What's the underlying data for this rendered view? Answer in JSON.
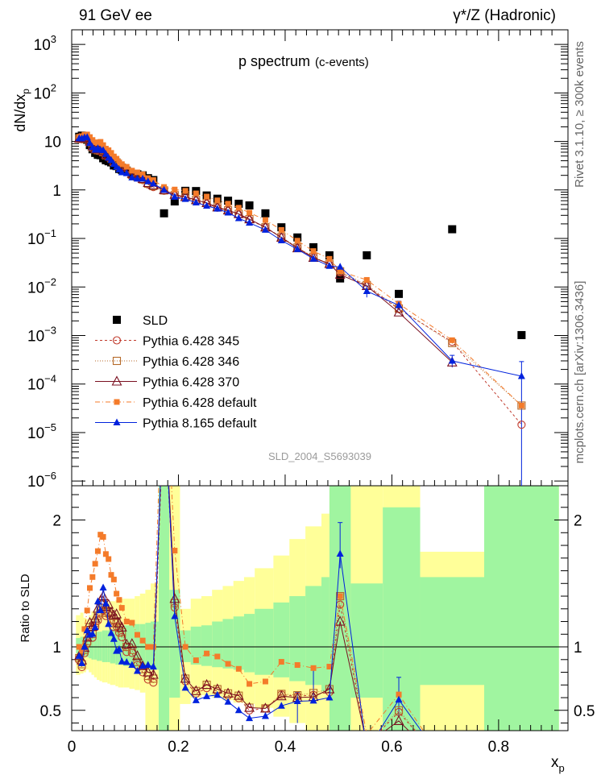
{
  "header": {
    "left": "91 GeV ee",
    "right": "γ*/Z (Hadronic)",
    "plot_title": "p spectrum",
    "plot_subtitle": "(c-events)",
    "side_top": "Rivet 3.1.10, ≥ 300k events",
    "side_bottom": "mcplots.cern.ch [arXiv:1306.3436]",
    "analysis_id": "SLD_2004_S5693039"
  },
  "chart_data": [
    {
      "type": "scatter",
      "name": "main-panel",
      "ylabel": "dN/dx",
      "ylabel_sub": "p",
      "yscale": "log",
      "ylim": [
        8e-07,
        2000
      ],
      "xlim": [
        0,
        0.93
      ],
      "ytick_labels": [
        {
          "v": 1000,
          "base": "10",
          "exp": "3"
        },
        {
          "v": 100,
          "base": "10",
          "exp": "2"
        },
        {
          "v": 10,
          "base": "10",
          "exp": ""
        },
        {
          "v": 1,
          "base": "1",
          "exp": ""
        },
        {
          "v": 0.1,
          "base": "10",
          "exp": "−1"
        },
        {
          "v": 0.01,
          "base": "10",
          "exp": "−2"
        },
        {
          "v": 0.001,
          "base": "10",
          "exp": "−3"
        },
        {
          "v": 0.0001,
          "base": "10",
          "exp": "−4"
        },
        {
          "v": 1e-05,
          "base": "10",
          "exp": "−5"
        },
        {
          "v": 1e-06,
          "base": "10",
          "exp": "−6"
        }
      ],
      "x": [
        0.014,
        0.019,
        0.024,
        0.029,
        0.034,
        0.039,
        0.044,
        0.049,
        0.054,
        0.059,
        0.064,
        0.069,
        0.074,
        0.079,
        0.084,
        0.089,
        0.094,
        0.103,
        0.113,
        0.123,
        0.133,
        0.143,
        0.153,
        0.173,
        0.193,
        0.213,
        0.233,
        0.253,
        0.273,
        0.293,
        0.313,
        0.333,
        0.363,
        0.393,
        0.423,
        0.453,
        0.483,
        0.503,
        0.553,
        0.613,
        0.713,
        0.843
      ],
      "series": [
        {
          "name": "SLD",
          "style": "sld",
          "color": "#000000",
          "values": [
            12.5,
            13.2,
            12.1,
            10.8,
            8.4,
            6.9,
            5.8,
            5.3,
            5.2,
            4.5,
            4.1,
            3.9,
            3.7,
            3.2,
            3.1,
            2.7,
            2.6,
            2.5,
            2.1,
            2.1,
            2.0,
            1.75,
            1.6,
            0.33,
            0.58,
            0.96,
            0.95,
            0.77,
            0.66,
            0.6,
            0.52,
            0.48,
            0.33,
            0.17,
            0.105,
            0.066,
            0.045,
            0.015,
            0.045,
            0.0072,
            0.155,
            0.00102
          ]
        },
        {
          "name": "Pythia 6.428 345",
          "style": "circle",
          "color": "#c0392b",
          "values": [
            11.2,
            11.1,
            11.5,
            11.1,
            9.4,
            7.4,
            6.7,
            6.4,
            6.6,
            5.8,
            5.1,
            4.9,
            4.4,
            3.7,
            3.6,
            3.0,
            2.8,
            2.4,
            2.0,
            1.8,
            1.6,
            1.3,
            1.15,
            0.96,
            0.76,
            0.7,
            0.6,
            0.52,
            0.43,
            0.37,
            0.31,
            0.24,
            0.17,
            0.106,
            0.064,
            0.041,
            0.029,
            0.02,
            0.0105,
            0.0035,
            0.00074,
            1.45e-05
          ]
        },
        {
          "name": "Pythia 6.428 346",
          "style": "square",
          "color": "#b56a2a",
          "values": [
            11.4,
            11.4,
            11.8,
            11.3,
            9.7,
            7.6,
            6.9,
            6.6,
            6.8,
            6.0,
            5.2,
            5.0,
            4.5,
            3.8,
            3.7,
            3.1,
            2.9,
            2.5,
            2.05,
            1.85,
            1.65,
            1.35,
            1.2,
            0.98,
            0.78,
            0.72,
            0.62,
            0.54,
            0.44,
            0.38,
            0.32,
            0.25,
            0.17,
            0.107,
            0.065,
            0.042,
            0.03,
            0.021,
            0.011,
            0.0036,
            0.0007,
            3.6e-05
          ]
        },
        {
          "name": "Pythia 6.428 370",
          "style": "triangle",
          "color": "#7a1020",
          "values": [
            11.6,
            11.8,
            12.0,
            11.6,
            10.0,
            8.0,
            7.1,
            6.9,
            7.1,
            6.3,
            5.4,
            5.2,
            4.7,
            4.0,
            3.9,
            3.2,
            3.0,
            2.55,
            2.15,
            1.95,
            1.7,
            1.4,
            1.25,
            1.0,
            0.8,
            0.72,
            0.62,
            0.54,
            0.44,
            0.38,
            0.32,
            0.25,
            0.17,
            0.104,
            0.063,
            0.04,
            0.03,
            0.018,
            0.0105,
            0.003,
            0.00028,
            null
          ]
        },
        {
          "name": "Pythia 6.428 default",
          "style": "fsquare",
          "color": "#f47b2a",
          "values": [
            12.5,
            12.8,
            13.8,
            13.9,
            12.3,
            10.7,
            9.6,
            9.3,
            9.8,
            8.4,
            7.1,
            6.6,
            5.8,
            4.9,
            4.4,
            3.7,
            3.4,
            3.0,
            2.5,
            2.3,
            2.1,
            1.75,
            1.6,
            1.15,
            1.02,
            0.96,
            0.85,
            0.73,
            0.61,
            0.52,
            0.43,
            0.34,
            0.24,
            0.15,
            0.09,
            0.055,
            0.038,
            0.021,
            0.014,
            0.0045,
            0.0008,
            3.6e-05
          ]
        },
        {
          "name": "Pythia 8.165 default",
          "style": "ftriangle",
          "color": "#0022dd",
          "values": [
            11.6,
            11.5,
            12.1,
            12.2,
            9.2,
            7.6,
            6.7,
            7.2,
            6.7,
            6.6,
            5.5,
            4.6,
            4.1,
            3.4,
            3.0,
            2.65,
            2.3,
            2.2,
            1.8,
            1.7,
            1.7,
            1.5,
            1.35,
            1.0,
            0.72,
            0.65,
            0.55,
            0.47,
            0.41,
            0.34,
            0.26,
            0.21,
            0.15,
            0.091,
            0.06,
            0.038,
            0.027,
            0.026,
            0.0082,
            0.0042,
            0.0003,
            0.000145
          ]
        }
      ],
      "error_bars": [
        {
          "series": "Pythia 8.165 default",
          "x": 0.843,
          "low": 8e-07,
          "high": 0.00029
        },
        {
          "series": "Pythia 8.165 default",
          "x": 0.553,
          "low": 0.0061,
          "high": 0.0105
        },
        {
          "series": "Pythia 8.165 default",
          "x": 0.613,
          "low": 0.0033,
          "high": 0.0051
        },
        {
          "series": "Pythia 8.165 default",
          "x": 0.713,
          "low": 0.00022,
          "high": 0.00039
        }
      ]
    },
    {
      "type": "scatter",
      "name": "ratio-panel",
      "ylabel": "Ratio to SLD",
      "xlabel": "x",
      "xlabel_sub": "p",
      "ylim": [
        0.34,
        2.27
      ],
      "xlim": [
        0,
        0.93
      ],
      "xticks": [
        0,
        0.2,
        0.4,
        0.6,
        0.8
      ],
      "xtick_labels": [
        "0",
        "0.2",
        "0.4",
        "0.6",
        "0.8"
      ],
      "yticks": [
        0.5,
        1,
        2
      ],
      "ytick_labels": [
        "0.5",
        "1",
        "2"
      ],
      "reference_line": 1,
      "bands": [
        [
          0.008,
          0.016,
          0.95,
          1.07,
          0.78,
          1.25
        ],
        [
          0.016,
          0.022,
          0.94,
          1.08,
          0.79,
          1.27
        ],
        [
          0.022,
          0.027,
          0.93,
          1.08,
          0.8,
          1.23
        ],
        [
          0.027,
          0.032,
          0.92,
          1.09,
          0.82,
          1.22
        ],
        [
          0.032,
          0.037,
          0.91,
          1.1,
          0.8,
          1.25
        ],
        [
          0.037,
          0.042,
          0.9,
          1.1,
          0.78,
          1.28
        ],
        [
          0.042,
          0.047,
          0.9,
          1.11,
          0.76,
          1.3
        ],
        [
          0.047,
          0.052,
          0.89,
          1.12,
          0.74,
          1.32
        ],
        [
          0.052,
          0.057,
          0.89,
          1.12,
          0.73,
          1.33
        ],
        [
          0.057,
          0.062,
          0.88,
          1.13,
          0.72,
          1.34
        ],
        [
          0.062,
          0.067,
          0.88,
          1.13,
          0.72,
          1.35
        ],
        [
          0.067,
          0.072,
          0.88,
          1.13,
          0.71,
          1.35
        ],
        [
          0.072,
          0.077,
          0.87,
          1.14,
          0.7,
          1.36
        ],
        [
          0.077,
          0.082,
          0.87,
          1.14,
          0.7,
          1.36
        ],
        [
          0.082,
          0.087,
          0.86,
          1.15,
          0.69,
          1.37
        ],
        [
          0.087,
          0.092,
          0.86,
          1.16,
          0.68,
          1.38
        ],
        [
          0.092,
          0.097,
          0.86,
          1.16,
          0.68,
          1.38
        ],
        [
          0.097,
          0.108,
          0.85,
          1.17,
          0.68,
          1.38
        ],
        [
          0.108,
          0.118,
          0.85,
          1.17,
          0.67,
          1.38
        ],
        [
          0.118,
          0.128,
          0.84,
          1.18,
          0.66,
          1.4
        ],
        [
          0.128,
          0.138,
          0.84,
          1.18,
          0.64,
          1.42
        ],
        [
          0.138,
          0.148,
          0.83,
          1.19,
          0.34,
          1.45
        ],
        [
          0.148,
          0.163,
          0.82,
          1.2,
          0.34,
          1.5
        ],
        [
          0.163,
          0.183,
          0.34,
          2.27,
          0.34,
          2.27
        ],
        [
          0.183,
          0.203,
          0.6,
          1.45,
          0.34,
          2.27
        ],
        [
          0.203,
          0.223,
          0.88,
          1.13,
          0.55,
          1.3
        ],
        [
          0.223,
          0.243,
          0.86,
          1.16,
          0.6,
          1.38
        ],
        [
          0.243,
          0.263,
          0.85,
          1.17,
          0.62,
          1.4
        ],
        [
          0.263,
          0.283,
          0.84,
          1.2,
          0.6,
          1.45
        ],
        [
          0.283,
          0.303,
          0.83,
          1.22,
          0.58,
          1.48
        ],
        [
          0.303,
          0.323,
          0.82,
          1.24,
          0.56,
          1.52
        ],
        [
          0.323,
          0.343,
          0.8,
          1.26,
          0.55,
          1.55
        ],
        [
          0.343,
          0.378,
          0.78,
          1.3,
          0.52,
          1.62
        ],
        [
          0.378,
          0.408,
          0.76,
          1.35,
          0.45,
          1.72
        ],
        [
          0.408,
          0.438,
          0.73,
          1.4,
          0.4,
          1.85
        ],
        [
          0.438,
          0.468,
          0.7,
          1.48,
          0.34,
          1.95
        ],
        [
          0.468,
          0.483,
          0.65,
          1.55,
          0.34,
          2.05
        ],
        [
          0.483,
          0.523,
          0.34,
          2.27,
          0.34,
          2.27
        ],
        [
          0.523,
          0.583,
          0.6,
          1.5,
          0.34,
          2.27
        ],
        [
          0.583,
          0.653,
          0.34,
          2.1,
          0.34,
          2.27
        ],
        [
          0.653,
          0.773,
          0.7,
          1.55,
          0.34,
          1.75
        ],
        [
          0.773,
          0.913,
          0.34,
          2.27,
          0.34,
          2.27
        ]
      ],
      "band_colors": {
        "inner": "#a0f5a0",
        "outer": "#ffff99"
      },
      "ratio_errors": [
        {
          "series": "Pythia 8.165 default",
          "x": 0.503,
          "low": 1.62,
          "high": 1.98
        },
        {
          "series": "Pythia 8.165 default",
          "x": 0.613,
          "low": 0.45,
          "high": 0.76
        },
        {
          "series": "Pythia 8.165 default",
          "x": 0.423,
          "low": 0.4,
          "high": 0.64
        },
        {
          "series": "Pythia 8.165 default",
          "x": 0.453,
          "low": 0.6,
          "high": 0.82
        }
      ]
    }
  ]
}
